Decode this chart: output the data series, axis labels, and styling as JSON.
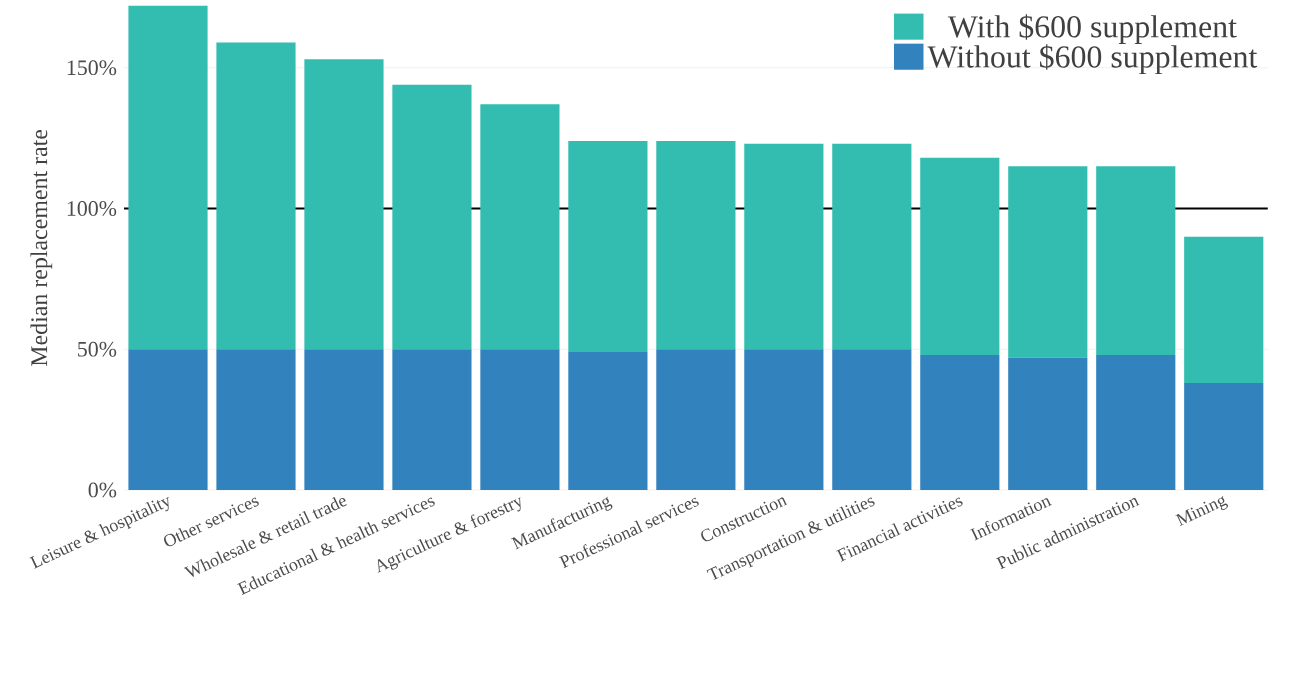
{
  "chart_data": {
    "type": "bar",
    "stacked": true,
    "ylabel": "Median replacement rate",
    "categories": [
      "Leisure & hospitality",
      "Other services",
      "Wholesale & retail trade",
      "Educational & health services",
      "Agriculture & forestry",
      "Manufacturing",
      "Professional services",
      "Construction",
      "Transportation & utilities",
      "Financial activities",
      "Information",
      "Public administration",
      "Mining"
    ],
    "series": [
      {
        "name": "Without $600 supplement",
        "color": "#3282bd",
        "values": [
          50,
          50,
          50,
          50,
          50,
          49,
          50,
          50,
          50,
          48,
          47,
          48,
          38
        ]
      },
      {
        "name": "With $600 supplement",
        "color": "#33bdb0",
        "values": [
          122,
          109,
          103,
          94,
          87,
          75,
          74,
          73,
          73,
          70,
          68,
          67,
          52
        ]
      }
    ],
    "ylim": [
      0,
      172
    ],
    "yticks": [
      {
        "value": 0,
        "label": "0%"
      },
      {
        "value": 50,
        "label": "50%"
      },
      {
        "value": 100,
        "label": "100%"
      },
      {
        "value": 150,
        "label": "150%"
      }
    ],
    "grid": "y",
    "legend": "top right",
    "ref_lines": [
      {
        "axis": "y",
        "value": 100,
        "color": "#000000"
      }
    ]
  }
}
